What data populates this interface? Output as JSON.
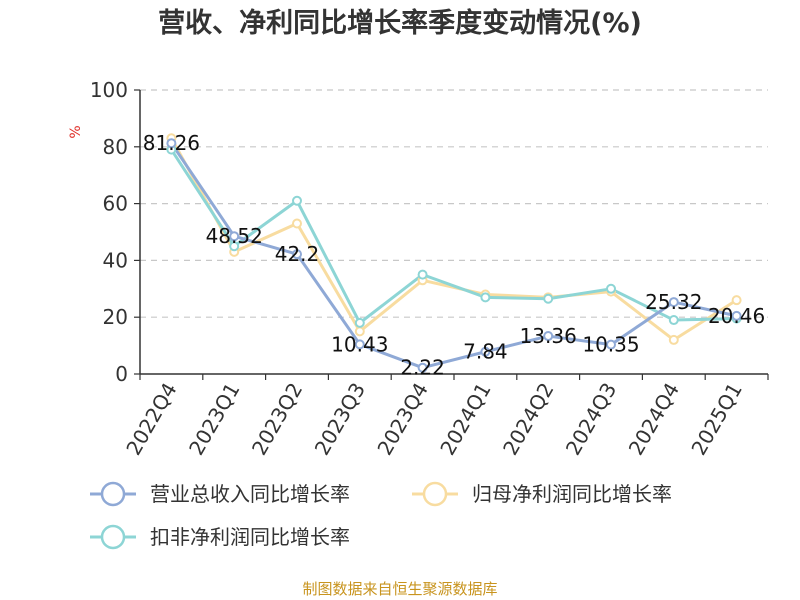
{
  "chart_data": {
    "type": "line",
    "title": "营收、净利同比增长率季度变动情况(%)",
    "ylabel": "%",
    "ylim": [
      0,
      100
    ],
    "yticks": [
      0,
      20,
      40,
      60,
      80,
      100
    ],
    "grid": true,
    "legend_position": "bottom",
    "categories": [
      "2022Q4",
      "2023Q1",
      "2023Q2",
      "2023Q3",
      "2023Q4",
      "2024Q1",
      "2024Q2",
      "2024Q3",
      "2024Q4",
      "2025Q1"
    ],
    "series": [
      {
        "name": "营业总收入同比增长率",
        "color": "#8fa9d6",
        "values": [
          81.26,
          48.52,
          42.2,
          10.43,
          2.22,
          7.84,
          13.36,
          10.35,
          25.32,
          20.46
        ],
        "labels": [
          "81.26",
          "48.52",
          "42.2",
          "10.43",
          "2.22",
          "7.84",
          "13.36",
          "10.35",
          "25.32",
          "20.46"
        ]
      },
      {
        "name": "归母净利润同比增长率",
        "color": "#f8dca0",
        "values": [
          83,
          43,
          53,
          15,
          33,
          28,
          27,
          29,
          12,
          26
        ]
      },
      {
        "name": "扣非净利润同比增长率",
        "color": "#8dd5d5",
        "values": [
          79,
          45,
          61,
          18,
          35,
          27,
          26.5,
          30,
          19,
          19.5
        ]
      }
    ],
    "source": "制图数据来自恒生聚源数据库"
  }
}
